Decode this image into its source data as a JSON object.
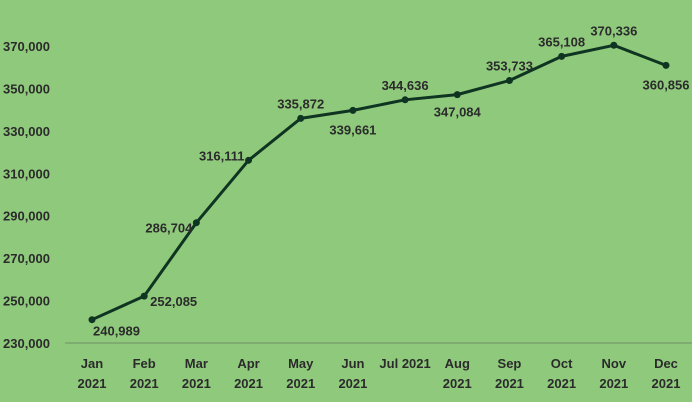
{
  "chart_data": {
    "type": "line",
    "title": "",
    "xlabel": "",
    "ylabel": "",
    "categories": [
      [
        "Jan",
        "2021"
      ],
      [
        "Feb",
        "2021"
      ],
      [
        "Mar",
        "2021"
      ],
      [
        "Apr",
        "2021"
      ],
      [
        "May",
        "2021"
      ],
      [
        "Jun",
        "2021"
      ],
      [
        "Jul 2021",
        ""
      ],
      [
        "Aug",
        "2021"
      ],
      [
        "Sep",
        "2021"
      ],
      [
        "Oct",
        "2021"
      ],
      [
        "Nov",
        "2021"
      ],
      [
        "Dec",
        "2021"
      ]
    ],
    "series": [
      {
        "values": [
          240989,
          252085,
          286704,
          316111,
          335872,
          339661,
          344636,
          347084,
          353733,
          365108,
          370336,
          360856
        ]
      }
    ],
    "value_labels": [
      "240,989",
      "252,085",
      "286,704",
      "316,111",
      "335,872",
      "339,661",
      "344,636",
      "347,084",
      "353,733",
      "365,108",
      "370,336",
      "360,856"
    ],
    "ylim": [
      230000,
      370000
    ],
    "yticks": [
      230000,
      250000,
      270000,
      290000,
      310000,
      330000,
      350000,
      370000
    ],
    "ytick_labels": [
      "230,000",
      "250,000",
      "270,000",
      "290,000",
      "310,000",
      "330,000",
      "350,000",
      "370,000"
    ],
    "grid": false,
    "legend": "none",
    "colors": {
      "background": "#8fca7c",
      "line": "#0f3522",
      "marker": "#0f3522",
      "axis": "#6f8f66",
      "text": "#2b2b2b"
    }
  }
}
